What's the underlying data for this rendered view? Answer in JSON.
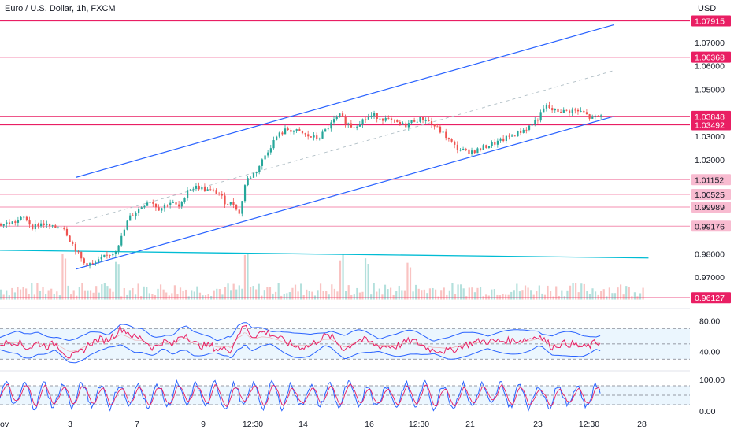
{
  "header": {
    "symbol_title": "Euro / U.S. Dollar, 1h, FXCM",
    "currency": "USD"
  },
  "colors": {
    "level_line": "#e91e63",
    "level_line_light": "#f48fb1",
    "channel": "#2962ff",
    "trend_teal": "#00bcd4",
    "candle_up": "#26a69a",
    "candle_down": "#ef5350",
    "rsi_line": "#e91e63",
    "bands": "#2962ff",
    "panel_fill": "#e3f2fd",
    "price_badge_dark": "#e91e63",
    "price_badge_light": "#f8bbd0"
  },
  "chart_data": {
    "type": "line",
    "main": {
      "series": "EUR/USD 1h candles",
      "x_ticks": [
        "ov",
        "3",
        "7",
        "9",
        "12:30",
        "14",
        "16",
        "12:30",
        "21",
        "23",
        "12:30",
        "28"
      ],
      "y_ticks": [
        "1.07000",
        "1.06000",
        "1.05000",
        "1.03000",
        "1.02000",
        "1.00000",
        "0.98000",
        "0.97000"
      ],
      "ylim": [
        0.958,
        1.082
      ],
      "levels": [
        {
          "label": "1.07915",
          "value": 1.07915,
          "style": "dark"
        },
        {
          "label": "1.06368",
          "value": 1.06368,
          "style": "dark"
        },
        {
          "label": "1.03848",
          "value": 1.03848,
          "style": "dark"
        },
        {
          "label": "1.03492",
          "value": 1.03492,
          "style": "dark"
        },
        {
          "label": "1.01152",
          "value": 1.01152,
          "style": "light"
        },
        {
          "label": "1.00525",
          "value": 1.00525,
          "style": "light"
        },
        {
          "label": "0.99989",
          "value": 0.99989,
          "style": "light"
        },
        {
          "label": "0.99176",
          "value": 0.99176,
          "style": "light"
        },
        {
          "label": "0.96127",
          "value": 0.96127,
          "style": "dark"
        }
      ],
      "channel_upper": [
        [
          0.11,
          1.0125
        ],
        [
          0.89,
          1.0775
        ]
      ],
      "channel_lower": [
        [
          0.11,
          0.9735
        ],
        [
          0.89,
          1.0385
        ]
      ],
      "channel_mid": [
        [
          0.11,
          0.993
        ],
        [
          0.89,
          1.058
        ]
      ],
      "trend_line": [
        [
          0.0,
          0.9815
        ],
        [
          0.94,
          0.9782
        ]
      ],
      "close_path": [
        [
          0.0,
          0.9925
        ],
        [
          0.02,
          0.9935
        ],
        [
          0.035,
          0.9955
        ],
        [
          0.045,
          0.9915
        ],
        [
          0.06,
          0.993
        ],
        [
          0.075,
          0.991
        ],
        [
          0.09,
          0.992
        ],
        [
          0.1,
          0.986
        ],
        [
          0.11,
          0.981
        ],
        [
          0.12,
          0.976
        ],
        [
          0.135,
          0.9755
        ],
        [
          0.15,
          0.9785
        ],
        [
          0.165,
          0.981
        ],
        [
          0.175,
          0.987
        ],
        [
          0.185,
          0.995
        ],
        [
          0.2,
          0.999
        ],
        [
          0.215,
          1.003
        ],
        [
          0.23,
          0.999
        ],
        [
          0.245,
          1.002
        ],
        [
          0.26,
          0.9995
        ],
        [
          0.27,
          1.0075
        ],
        [
          0.285,
          1.0085
        ],
        [
          0.3,
          1.007
        ],
        [
          0.315,
          1.006
        ],
        [
          0.325,
          1.002
        ],
        [
          0.34,
          1.001
        ],
        [
          0.345,
          0.996
        ],
        [
          0.355,
          1.011
        ],
        [
          0.37,
          1.015
        ],
        [
          0.385,
          1.023
        ],
        [
          0.4,
          1.03
        ],
        [
          0.415,
          1.033
        ],
        [
          0.43,
          1.032
        ],
        [
          0.445,
          1.03
        ],
        [
          0.46,
          1.029
        ],
        [
          0.475,
          1.034
        ],
        [
          0.49,
          1.039
        ],
        [
          0.5,
          1.036
        ],
        [
          0.51,
          1.034
        ],
        [
          0.525,
          1.037
        ],
        [
          0.54,
          1.039
        ],
        [
          0.555,
          1.0375
        ],
        [
          0.57,
          1.036
        ],
        [
          0.585,
          1.0345
        ],
        [
          0.6,
          1.037
        ],
        [
          0.615,
          1.0375
        ],
        [
          0.63,
          1.034
        ],
        [
          0.645,
          1.03
        ],
        [
          0.66,
          1.025
        ],
        [
          0.675,
          1.0235
        ],
        [
          0.69,
          1.024
        ],
        [
          0.705,
          1.026
        ],
        [
          0.72,
          1.0275
        ],
        [
          0.735,
          1.0295
        ],
        [
          0.75,
          1.0315
        ],
        [
          0.765,
          1.034
        ],
        [
          0.78,
          1.038
        ],
        [
          0.79,
          1.043
        ],
        [
          0.8,
          1.041
        ],
        [
          0.815,
          1.0405
        ],
        [
          0.83,
          1.041
        ],
        [
          0.845,
          1.04
        ],
        [
          0.855,
          1.0375
        ],
        [
          0.87,
          1.0388
        ]
      ],
      "volume_spikes": [
        0.09,
        0.17,
        0.355,
        0.495,
        0.53,
        0.59
      ]
    },
    "rsi_panel": {
      "y_ticks": [
        "80.00",
        "40.00"
      ],
      "bands": [
        70,
        50,
        30
      ],
      "ylim": [
        20,
        90
      ]
    },
    "stoch_panel": {
      "y_ticks": [
        "100.00",
        "0.00"
      ],
      "bands": [
        80,
        50,
        20
      ],
      "ylim": [
        -10,
        110
      ]
    }
  }
}
